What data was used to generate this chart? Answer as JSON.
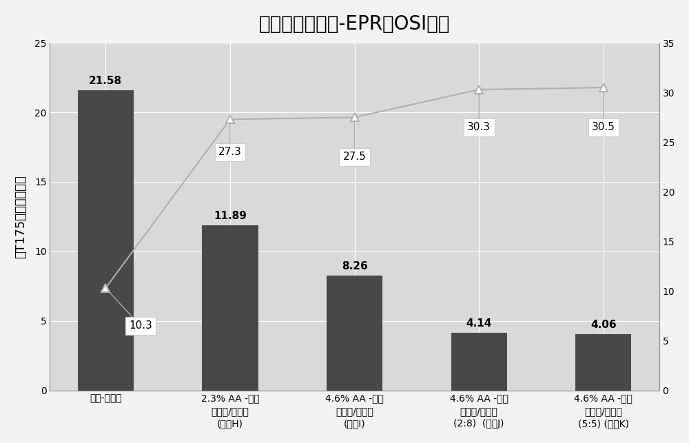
{
  "title": "成分的协同作用-EPR和OSI数据",
  "categories": [
    "对照-菜籽油",
    "2.3% AA -没有\n生育酚/卵磷脂\n(样品H)",
    "4.6% AA -没有\n生育酚/卵磷脂\n(样品I)",
    "4.6% AA -具有\n生育酚/卵磷脂\n(2:8)  (样品J)",
    "4.6% AA -具有\n生育酚/卵磷脂\n(5:5) (样品K)"
  ],
  "bar_values": [
    21.58,
    11.89,
    8.26,
    4.14,
    4.06
  ],
  "line_values": [
    10.3,
    27.3,
    27.5,
    30.3,
    30.5
  ],
  "bar_color": "#484848",
  "line_color": "#b0b0b0",
  "ylabel_left": "在T175的自由基浓度",
  "ylim_left": [
    0,
    25
  ],
  "ylim_right": [
    0,
    35
  ],
  "yticks_left": [
    0,
    5,
    10,
    15,
    20,
    25
  ],
  "yticks_right": [
    0,
    5,
    10,
    15,
    20,
    25,
    30,
    35
  ],
  "plot_bg_color": "#d9d9d9",
  "outer_bg_color": "#f2f2f2",
  "title_fontsize": 20,
  "axis_fontsize": 13,
  "annotation_fontsize": 11,
  "bar_annotation_fontsize": 11
}
